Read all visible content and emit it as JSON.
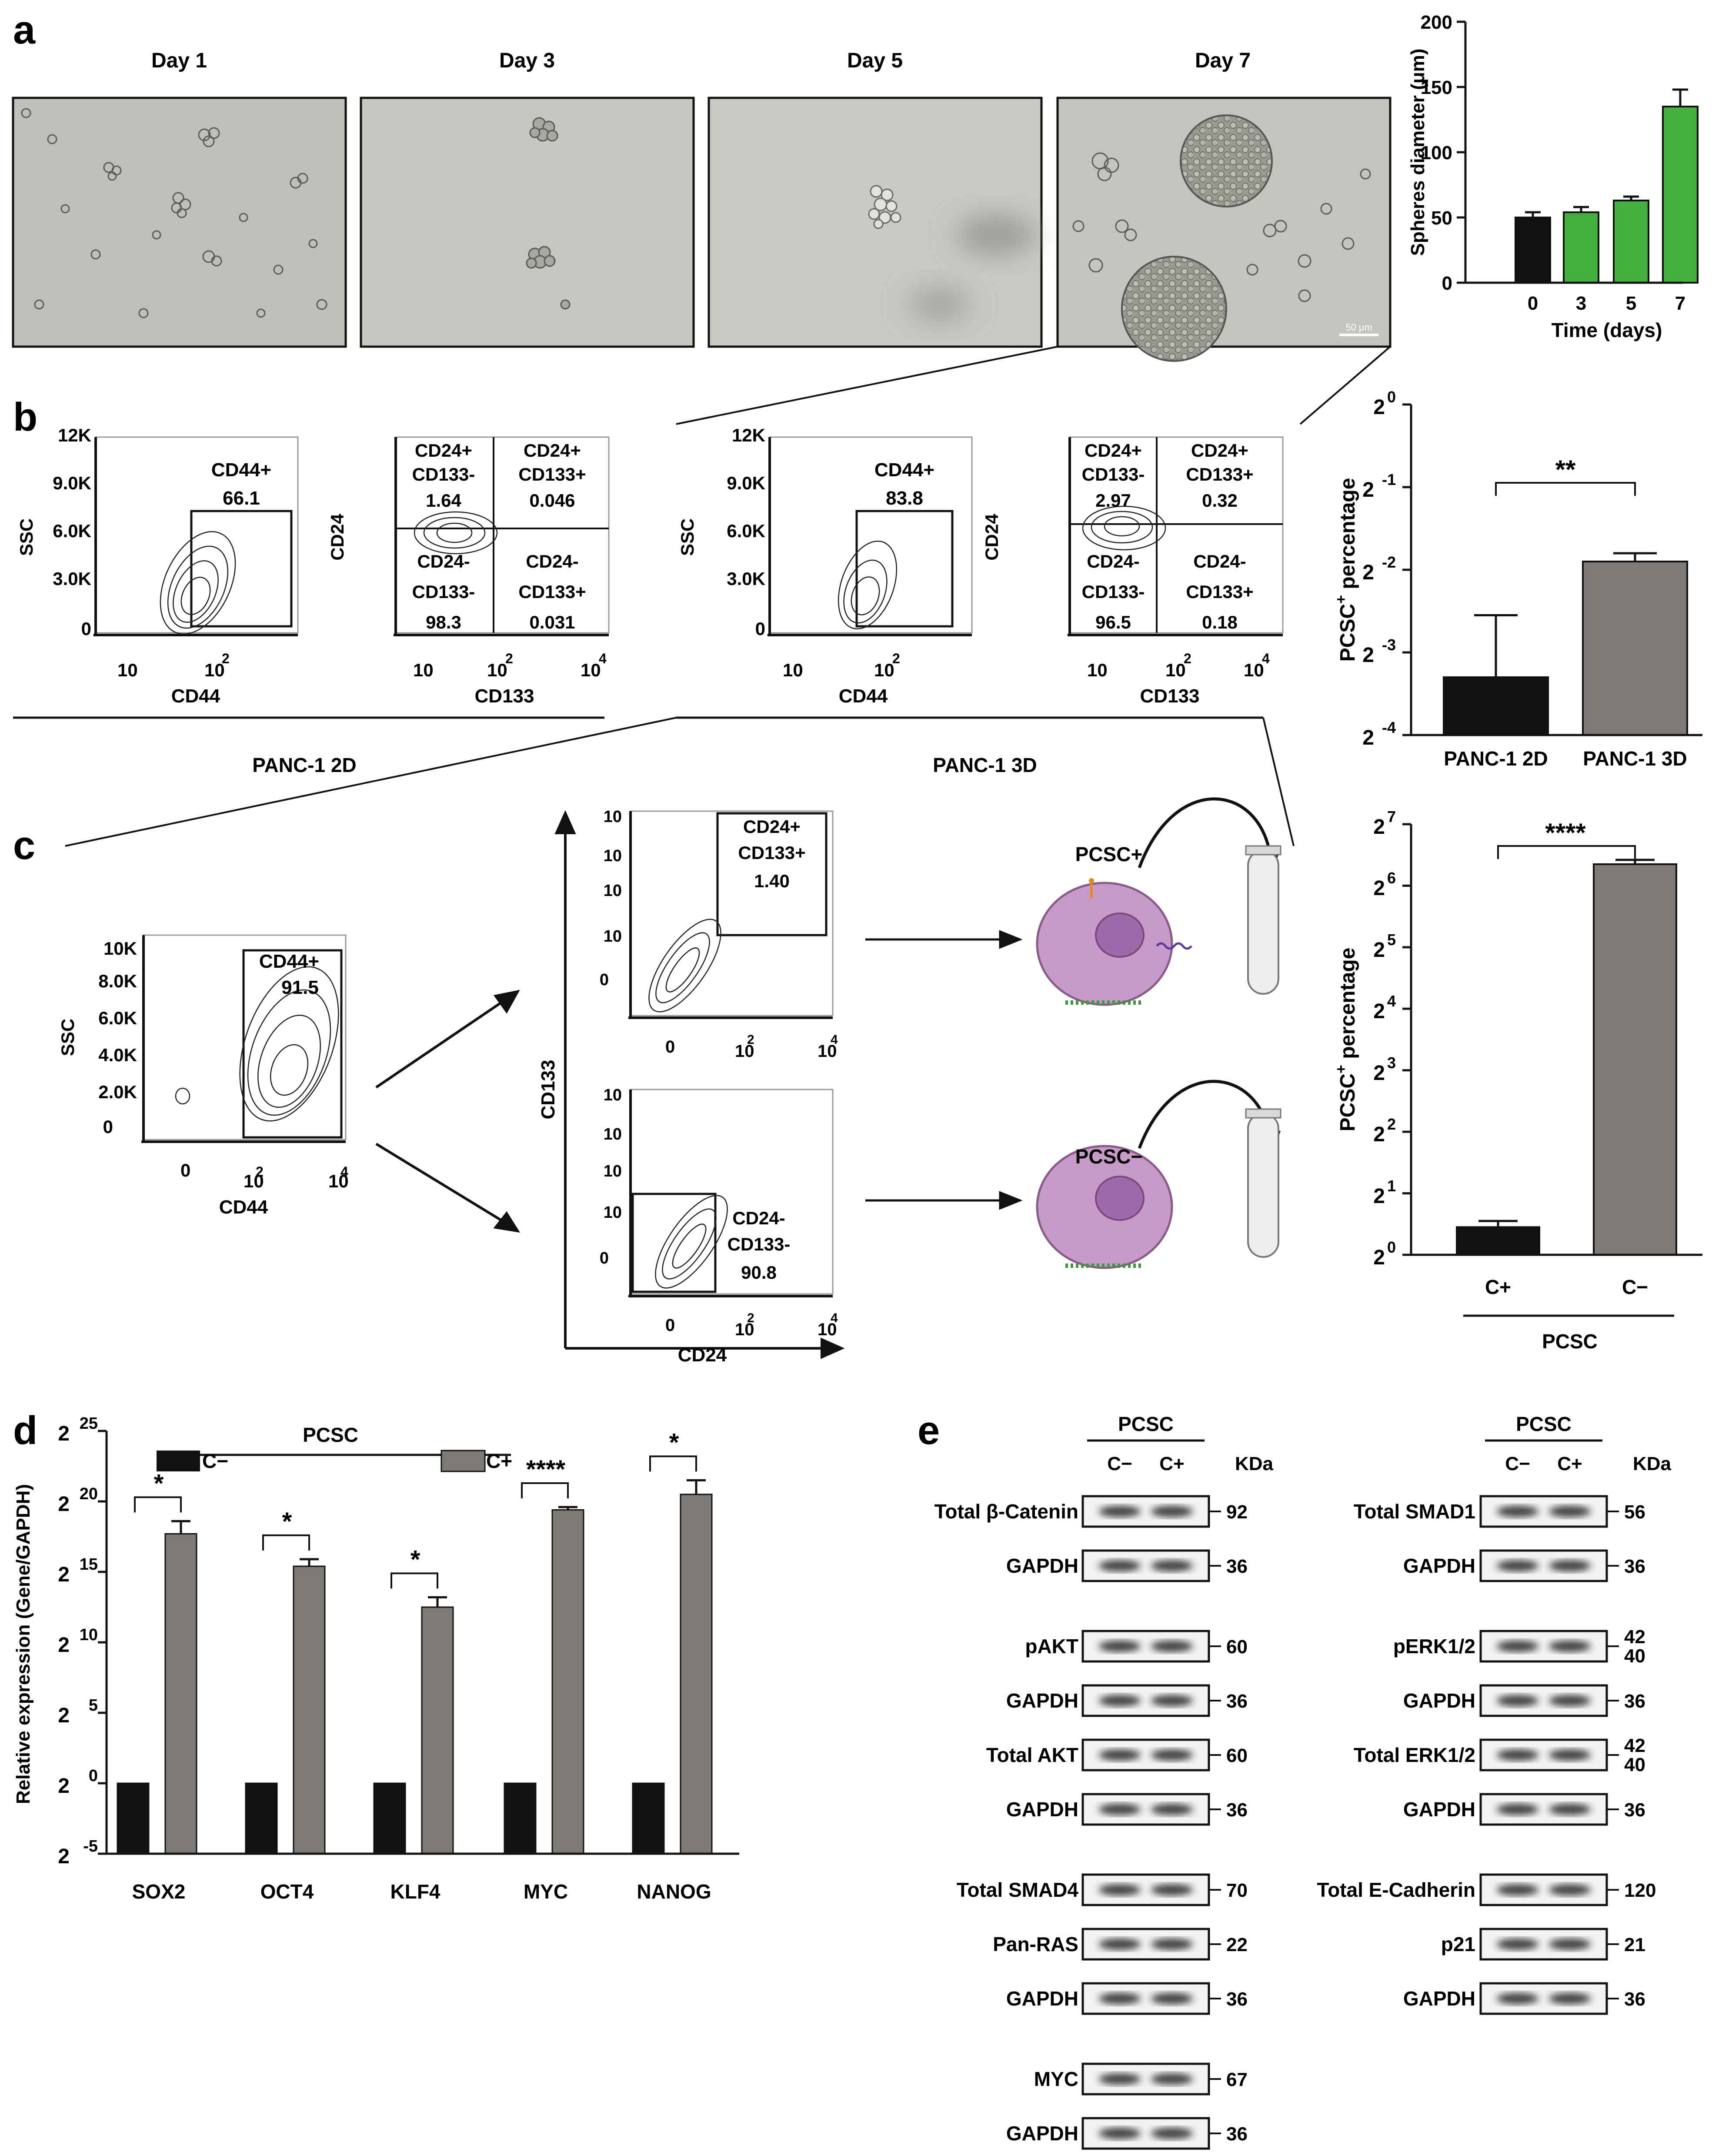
{
  "panel_letters": {
    "a": "a",
    "b": "b",
    "c": "c",
    "d": "d",
    "e": "e"
  },
  "colors": {
    "black_bar": "#111111",
    "green_bar": "#44b03c",
    "grey_bar": "#7d7a75",
    "cell_fill": "#c89ac8",
    "cell_nucleus": "#a06aaa"
  },
  "panel_a": {
    "day_labels": [
      "Day 1",
      "Day 3",
      "Day 5",
      "Day 7"
    ],
    "scale_bar": "50 μm",
    "chart": {
      "ylabel": "Spheres diameter (μm)",
      "xlabel": "Time (days)",
      "ytick_labels": [
        "0",
        "50",
        "100",
        "150",
        "200"
      ],
      "categories": [
        "0",
        "3",
        "5",
        "7"
      ]
    }
  },
  "panel_b": {
    "group_2d": "PANC-1 2D",
    "group_3d": "PANC-1 3D",
    "ssc_ticks": [
      "12K",
      "9.0K",
      "6.0K",
      "3.0K",
      "0"
    ],
    "ssc_label": "SSC",
    "cd44_label": "CD44",
    "cd24_label": "CD24",
    "cd133_label": "CD133",
    "log_ticks_x": [
      "10",
      "10",
      "10"
    ],
    "log_exps_x": [
      "",
      "2",
      "4"
    ],
    "plots_2d": {
      "gate_label": "CD44+",
      "gate_value": "66.1",
      "quadrants": [
        {
          "line1": "CD24+",
          "line2": "CD133-",
          "value": "1.64"
        },
        {
          "line1": "CD24+",
          "line2": "CD133+",
          "value": "0.046"
        },
        {
          "line1": "CD24-",
          "line2": "CD133-",
          "value": "98.3"
        },
        {
          "line1": "CD24-",
          "line2": "CD133+",
          "value": "0.031"
        }
      ]
    },
    "plots_3d": {
      "gate_label": "CD44+",
      "gate_value": "83.8",
      "quadrants": [
        {
          "line1": "CD24+",
          "line2": "CD133-",
          "value": "2.97"
        },
        {
          "line1": "CD24+",
          "line2": "CD133+",
          "value": "0.32"
        },
        {
          "line1": "CD24-",
          "line2": "CD133-",
          "value": "96.5"
        },
        {
          "line1": "CD24-",
          "line2": "CD133+",
          "value": "0.18"
        }
      ]
    },
    "chart": {
      "ylabel": "PCSC",
      "ylabel_sup": "+",
      "ylabel_suffix": " percentage",
      "ytick_base": [
        "2",
        "2",
        "2",
        "2",
        "2"
      ],
      "ytick_exps": [
        "0",
        "-1",
        "-2",
        "-3",
        "-4"
      ],
      "categories": [
        "PANC-1 2D",
        "PANC-1 3D"
      ],
      "significance": "**"
    }
  },
  "panel_c": {
    "ssc_ticks": [
      "10K",
      "8.0K",
      "6.0K",
      "4.0K",
      "2.0K",
      "0"
    ],
    "gate_label": "CD44+",
    "gate_value": "91.5",
    "pos_gate_label1": "CD24+",
    "pos_gate_label2": "CD133+",
    "pos_gate_value": "1.40",
    "neg_gate_label1": "CD24-",
    "neg_gate_label2": "CD133-",
    "neg_gate_value": "90.8",
    "pcsc_pos": "PCSC+",
    "pcsc_neg": "PCSC−",
    "chart": {
      "ylabel": "PCSC",
      "ylabel_sup": "+",
      "ylabel_suffix": " percentage",
      "ytick_exps": [
        "7",
        "6",
        "5",
        "4",
        "3",
        "2",
        "1",
        "0"
      ],
      "categories": [
        "C+",
        "C−"
      ],
      "group_label": "PCSC",
      "significance": "****"
    }
  },
  "panel_d": {
    "ylabel": "Relative expression (Gene/GAPDH)",
    "ytick_exps": [
      "25",
      "20",
      "15",
      "10",
      " 5",
      "0",
      "-5"
    ],
    "group_label": "PCSC",
    "legend": [
      "C−",
      "C+"
    ],
    "categories": [
      "SOX2",
      "OCT4",
      "KLF4",
      "MYC",
      "NANOG"
    ],
    "significance": [
      "*",
      "*",
      "*",
      "****",
      "*"
    ]
  },
  "panel_e": {
    "header": "PCSC",
    "lane_labels": [
      "C−",
      "C+"
    ],
    "kda": "KDa",
    "left_blots": [
      {
        "label": "Total β-Catenin",
        "kda": "92"
      },
      {
        "label": "GAPDH",
        "kda": "36"
      },
      {
        "label": "pAKT",
        "kda": "60"
      },
      {
        "label": "GAPDH",
        "kda": "36"
      },
      {
        "label": "Total AKT",
        "kda": "60"
      },
      {
        "label": "GAPDH",
        "kda": "36"
      },
      {
        "label": "Total SMAD4",
        "kda": "70"
      },
      {
        "label": "Pan-RAS",
        "kda": "22"
      },
      {
        "label": "GAPDH",
        "kda": "36"
      },
      {
        "label": "MYC",
        "kda": "67"
      },
      {
        "label": "GAPDH",
        "kda": "36"
      }
    ],
    "right_blots": [
      {
        "label": "Total SMAD1",
        "kda": "56"
      },
      {
        "label": "GAPDH",
        "kda": "36"
      },
      {
        "label": "pERK1/2",
        "kda": "42",
        "kda2": "40"
      },
      {
        "label": "GAPDH",
        "kda": "36"
      },
      {
        "label": "Total ERK1/2",
        "kda": "42",
        "kda2": "40"
      },
      {
        "label": "GAPDH",
        "kda": "36"
      },
      {
        "label": "Total E-Cadherin",
        "kda": "120"
      },
      {
        "label": "p21",
        "kda": "21"
      },
      {
        "label": "GAPDH",
        "kda": "36"
      }
    ]
  },
  "chart_data": [
    {
      "type": "bar",
      "title": "",
      "categories": [
        "0",
        "3",
        "5",
        "7"
      ],
      "values": [
        50,
        54,
        63,
        135
      ],
      "errors": [
        4,
        4,
        3,
        13
      ],
      "colors": [
        "#111111",
        "#44b03c",
        "#44b03c",
        "#44b03c"
      ],
      "xlabel": "Time (days)",
      "ylabel": "Spheres diameter (μm)",
      "ylim": [
        0,
        200
      ]
    },
    {
      "type": "bar",
      "title": "",
      "categories": [
        "PANC-1 2D",
        "PANC-1 3D"
      ],
      "log2_values": [
        -3.3,
        -1.9
      ],
      "log2_error_upper": [
        -2.55,
        -1.8
      ],
      "ylabel": "PCSC+ percentage",
      "ylim_log2": [
        -4,
        0
      ],
      "significance": "**"
    },
    {
      "type": "bar",
      "title": "",
      "categories": [
        "C+",
        "C−"
      ],
      "group": "PCSC",
      "log2_values": [
        0.45,
        6.35
      ],
      "log2_error_upper": [
        0.55,
        6.42
      ],
      "ylabel": "PCSC+ percentage",
      "ylim_log2": [
        0,
        7
      ],
      "significance": "****"
    },
    {
      "type": "bar",
      "title": "",
      "categories": [
        "SOX2",
        "OCT4",
        "KLF4",
        "MYC",
        "NANOG"
      ],
      "series": [
        {
          "name": "C−",
          "log2_values": [
            0,
            0,
            0,
            0,
            0
          ]
        },
        {
          "name": "C+",
          "log2_values": [
            17.7,
            15.4,
            12.5,
            19.4,
            20.5
          ],
          "log2_error_upper": [
            18.6,
            15.9,
            13.2,
            19.6,
            21.5
          ]
        }
      ],
      "ylabel": "Relative expression (Gene/GAPDH)",
      "ylim_log2": [
        -5,
        25
      ],
      "significance": [
        "*",
        "*",
        "*",
        "****",
        "*"
      ]
    }
  ]
}
